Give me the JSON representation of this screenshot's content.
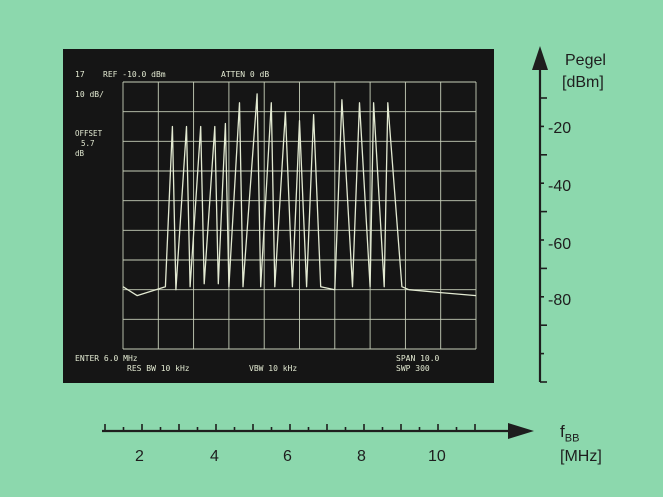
{
  "colors": {
    "background": "#8cd8ad",
    "screen": "#151515",
    "trace": "#e3ead2",
    "grid": "#c7cfb9",
    "axis": "#1e1e1e"
  },
  "screen_text": {
    "top_marker": "17",
    "ref": "REF -10.0 dBm",
    "atten": "ATTEN 0 dB",
    "scale": "10 dB/",
    "offset_label": "OFFSET",
    "offset_value": "5.7",
    "offset_unit": "dB",
    "center": "ENTER 6.0 MHz",
    "span": "SPAN 10.0",
    "res_bw": "RES BW 10 kHz",
    "vbw": "VBW 10 kHz",
    "sweep": "SWP 300"
  },
  "y_axis": {
    "label_line1": "Pegel",
    "label_line2": "[dBm]",
    "ticks": [
      "-20",
      "-40",
      "-60",
      "-80"
    ]
  },
  "x_axis": {
    "symbol": "f",
    "symbol_sub": "BB",
    "unit": "[MHz]",
    "ticks": [
      "2",
      "4",
      "6",
      "8",
      "10"
    ]
  },
  "chart_data": {
    "type": "line",
    "xlabel": "fBB [MHz]",
    "ylabel": "Pegel [dBm]",
    "xlim": [
      1,
      11
    ],
    "ylim": [
      -100,
      -10
    ],
    "x_ticks": [
      2,
      4,
      6,
      8,
      10
    ],
    "y_ticks": [
      -20,
      -40,
      -60,
      -80
    ],
    "grid": true,
    "noise_floor_dbm": -80,
    "series": [
      {
        "x": [
          1.0,
          1.4,
          2.2,
          2.4,
          2.5,
          2.8,
          2.9,
          3.2,
          3.3,
          3.6,
          3.7,
          3.9,
          4.0,
          4.3,
          4.4,
          4.8,
          4.9,
          5.2,
          5.3,
          5.6,
          5.8,
          6.0,
          6.2,
          6.4,
          6.6,
          7.0,
          7.2,
          7.5,
          7.7,
          8.0,
          8.1,
          8.4,
          8.5,
          8.9,
          9.1,
          10.0,
          11.0
        ],
        "y": [
          -79,
          -82,
          -79,
          -25,
          -80,
          -25,
          -79,
          -25,
          -78,
          -25,
          -78,
          -24,
          -79,
          -17,
          -79,
          -14,
          -79,
          -17,
          -79,
          -20,
          -79,
          -23,
          -79,
          -21,
          -79,
          -80,
          -16,
          -79,
          -17,
          -79,
          -17,
          -79,
          -17,
          -79,
          -80,
          -81,
          -82
        ]
      }
    ]
  }
}
